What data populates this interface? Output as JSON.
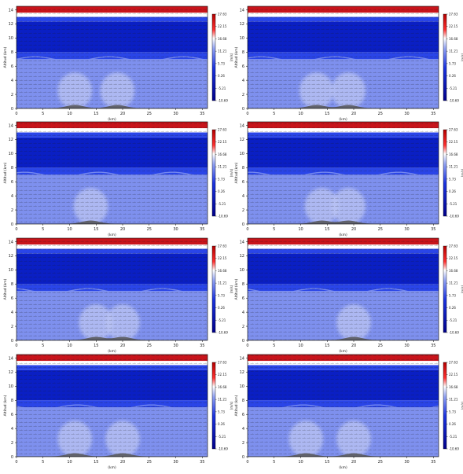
{
  "figure": {
    "panel_count": 8,
    "layout": "4 rows x 2 columns"
  },
  "chart_data": [
    {
      "type": "heatmap",
      "panel": 1,
      "xlabel": "(km)",
      "ylabel": "Altitud (km)",
      "colorbar_label": "(m/s)",
      "xlim": [
        0,
        36
      ],
      "ylim": [
        0,
        14.5
      ],
      "xticks": [
        0,
        5,
        10,
        15,
        20,
        25,
        30,
        35
      ],
      "yticks": [
        0,
        2,
        4,
        6,
        8,
        10,
        12,
        14
      ],
      "colorbar_ticks": [
        "27.63",
        "22.15",
        "16.68",
        "11.21",
        "5.73",
        "0.26",
        "-5.21",
        "-10.69"
      ],
      "colorbar_range": [
        -10.69,
        27.63
      ],
      "colormap": "seismic (blue-white-red)",
      "terrain_peaks_km": [
        11,
        19
      ],
      "overlay": "wind vectors"
    },
    {
      "type": "heatmap",
      "panel": 2,
      "xlabel": "(km)",
      "ylabel": "Altitud (km)",
      "colorbar_label": "(m/s)",
      "xlim": [
        0,
        36
      ],
      "ylim": [
        0,
        14.5
      ],
      "xticks": [
        0,
        5,
        10,
        15,
        20,
        25,
        30,
        35
      ],
      "yticks": [
        0,
        2,
        4,
        6,
        8,
        10,
        12,
        14
      ],
      "colorbar_ticks": [
        "27.63",
        "22.15",
        "16.68",
        "11.21",
        "5.73",
        "0.26",
        "-5.21",
        "-10.69"
      ],
      "colorbar_range": [
        -10.69,
        27.63
      ],
      "colormap": "seismic (blue-white-red)",
      "terrain_peaks_km": [
        13,
        19
      ],
      "overlay": "wind vectors"
    },
    {
      "type": "heatmap",
      "panel": 3,
      "xlabel": "(km)",
      "ylabel": "Altitud (km)",
      "colorbar_label": "(m/s)",
      "xlim": [
        0,
        36
      ],
      "ylim": [
        0,
        14.5
      ],
      "xticks": [
        0,
        5,
        10,
        15,
        20,
        25,
        30,
        35
      ],
      "yticks": [
        0,
        2,
        4,
        6,
        8,
        10,
        12,
        14
      ],
      "colorbar_ticks": [
        "27.63",
        "22.15",
        "16.68",
        "11.21",
        "5.73",
        "0.26",
        "-5.21",
        "-10.69"
      ],
      "colorbar_range": [
        -10.69,
        27.63
      ],
      "colormap": "seismic (blue-white-red)",
      "terrain_peaks_km": [
        14
      ],
      "overlay": "wind vectors"
    },
    {
      "type": "heatmap",
      "panel": 4,
      "xlabel": "(km)",
      "ylabel": "Altitud (km)",
      "colorbar_label": "(m/s)",
      "xlim": [
        0,
        36
      ],
      "ylim": [
        0,
        14.5
      ],
      "xticks": [
        0,
        5,
        10,
        15,
        20,
        25,
        30,
        35
      ],
      "yticks": [
        0,
        2,
        4,
        6,
        8,
        10,
        12,
        14
      ],
      "colorbar_ticks": [
        "27.63",
        "22.15",
        "16.68",
        "11.21",
        "5.73",
        "0.26",
        "-5.21",
        "-10.69"
      ],
      "colorbar_range": [
        -10.69,
        27.63
      ],
      "colormap": "seismic (blue-white-red)",
      "terrain_peaks_km": [
        14,
        19
      ],
      "overlay": "wind vectors"
    },
    {
      "type": "heatmap",
      "panel": 5,
      "xlabel": "(km)",
      "ylabel": "Altitud (km)",
      "colorbar_label": "(m/s)",
      "xlim": [
        0,
        36
      ],
      "ylim": [
        0,
        14.5
      ],
      "xticks": [
        0,
        5,
        10,
        15,
        20,
        25,
        30,
        35
      ],
      "yticks": [
        0,
        2,
        4,
        6,
        8,
        10,
        12,
        14
      ],
      "colorbar_ticks": [
        "27.63",
        "22.15",
        "16.68",
        "11.21",
        "5.73",
        "0.26",
        "-5.21",
        "-10.69"
      ],
      "colorbar_range": [
        -10.69,
        27.63
      ],
      "colormap": "seismic (blue-white-red)",
      "terrain_peaks_km": [
        15,
        20
      ],
      "overlay": "wind vectors"
    },
    {
      "type": "heatmap",
      "panel": 6,
      "xlabel": "(km)",
      "ylabel": "Altitud (km)",
      "colorbar_label": "(m/s)",
      "xlim": [
        0,
        36
      ],
      "ylim": [
        0,
        14.5
      ],
      "xticks": [
        0,
        5,
        10,
        15,
        20,
        25,
        30,
        35
      ],
      "yticks": [
        0,
        2,
        4,
        6,
        8,
        10,
        12,
        14
      ],
      "colorbar_ticks": [
        "27.63",
        "22.15",
        "16.68",
        "11.21",
        "5.73",
        "0.26",
        "-5.21",
        "-10.69"
      ],
      "colorbar_range": [
        -10.69,
        27.63
      ],
      "colormap": "seismic (blue-white-red)",
      "terrain_peaks_km": [
        20
      ],
      "overlay": "wind vectors"
    },
    {
      "type": "heatmap",
      "panel": 7,
      "xlabel": "(km)",
      "ylabel": "Altitud (km)",
      "colorbar_label": "(m/s)",
      "xlim": [
        0,
        36
      ],
      "ylim": [
        0,
        14.5
      ],
      "xticks": [
        0,
        5,
        10,
        15,
        20,
        25,
        30,
        35
      ],
      "yticks": [
        0,
        2,
        4,
        6,
        8,
        10,
        12,
        14
      ],
      "colorbar_ticks": [
        "27.63",
        "22.15",
        "16.68",
        "11.21",
        "5.73",
        "0.26",
        "-5.21",
        "-10.69"
      ],
      "colorbar_range": [
        -10.69,
        27.63
      ],
      "colormap": "seismic (blue-white-red)",
      "terrain_peaks_km": [
        11,
        20
      ],
      "overlay": "wind vectors"
    },
    {
      "type": "heatmap",
      "panel": 8,
      "xlabel": "(km)",
      "ylabel": "Altitud (km)",
      "colorbar_label": "(m/s)",
      "xlim": [
        0,
        36
      ],
      "ylim": [
        0,
        14.5
      ],
      "xticks": [
        0,
        5,
        10,
        15,
        20,
        25,
        30,
        35
      ],
      "yticks": [
        0,
        2,
        4,
        6,
        8,
        10,
        12,
        14
      ],
      "colorbar_ticks": [
        "27.63",
        "22.15",
        "16.68",
        "11.21",
        "5.73",
        "0.26",
        "-5.21",
        "-10.69"
      ],
      "colorbar_range": [
        -10.69,
        27.63
      ],
      "colormap": "seismic (blue-white-red)",
      "terrain_peaks_km": [
        11,
        20
      ],
      "overlay": "wind vectors"
    }
  ],
  "colors": {
    "deep_blue": "#0a1fc4",
    "mid_blue": "#2a45e8",
    "light_blue": "#7e90ee",
    "pale_blue": "#b9c3f4",
    "white": "#ffffff",
    "red": "#c8141b",
    "terrain": "#555555"
  }
}
